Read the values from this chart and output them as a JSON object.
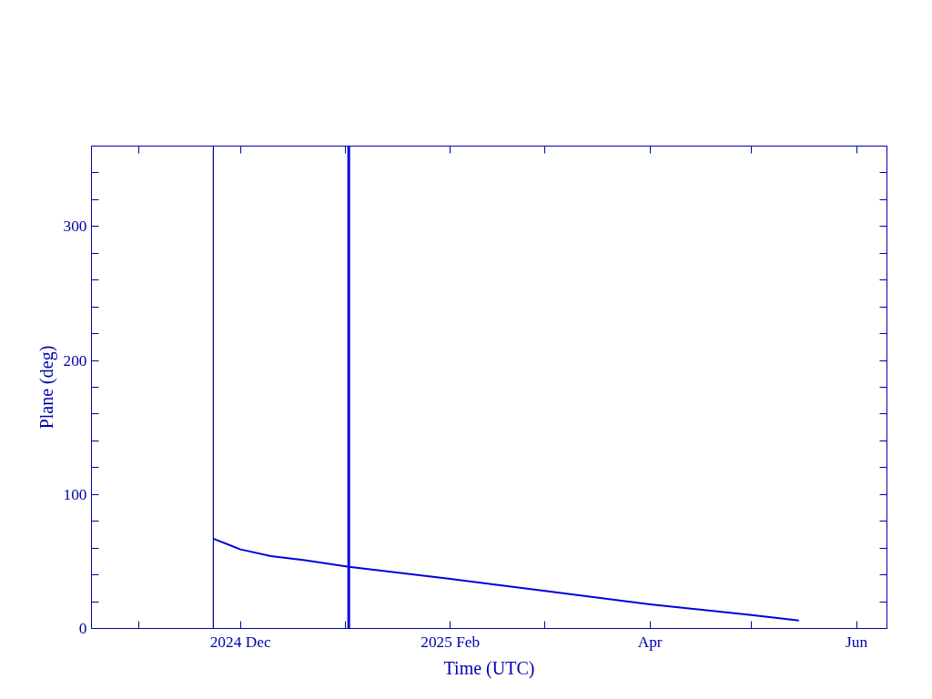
{
  "chart_data": {
    "type": "line",
    "xlabel": "Time (UTC)",
    "ylabel": "Plane (deg)",
    "x": [
      "2024-11-23",
      "2024-12-01",
      "2024-12-10",
      "2024-12-20",
      "2025-01-02",
      "2025-02-01",
      "2025-03-01",
      "2025-04-01",
      "2025-05-01",
      "2025-05-15"
    ],
    "series": [
      {
        "color": "#0000dd",
        "values": [
          67,
          59,
          54,
          51,
          46,
          37,
          28,
          18,
          10,
          6
        ]
      }
    ],
    "xlim": [
      "2024-10-18",
      "2025-06-10"
    ],
    "xticks": [
      {
        "value": "2024-11-01",
        "label": null
      },
      {
        "value": "2024-12-01",
        "label": "2024 Dec"
      },
      {
        "value": "2025-01-01",
        "label": null
      },
      {
        "value": "2025-02-01",
        "label": "2025 Feb"
      },
      {
        "value": "2025-03-01",
        "label": null
      },
      {
        "value": "2025-04-01",
        "label": "Apr"
      },
      {
        "value": "2025-05-01",
        "label": null
      },
      {
        "value": "2025-06-01",
        "label": "Jun"
      }
    ],
    "ylim": [
      0,
      360
    ],
    "yticks": [
      0,
      {
        "value": 20,
        "label": null
      },
      {
        "value": 40,
        "label": null
      },
      {
        "value": 60,
        "label": null
      },
      {
        "value": 80,
        "label": null
      },
      100,
      {
        "value": 120,
        "label": null
      },
      {
        "value": 140,
        "label": null
      },
      {
        "value": 160,
        "label": null
      },
      {
        "value": 180,
        "label": null
      },
      200,
      {
        "value": 220,
        "label": null
      },
      {
        "value": 240,
        "label": null
      },
      {
        "value": 260,
        "label": null
      },
      {
        "value": 280,
        "label": null
      },
      300,
      {
        "value": 320,
        "label": null
      },
      {
        "value": 340,
        "label": null
      }
    ],
    "ref_lines": [
      {
        "axis": "x",
        "value": "2024-11-23",
        "color": "#000088"
      },
      {
        "axis": "x",
        "value": "2025-01-02",
        "color": "#0000dd"
      }
    ],
    "grid": false,
    "marker": "none",
    "line_style": "solid"
  }
}
